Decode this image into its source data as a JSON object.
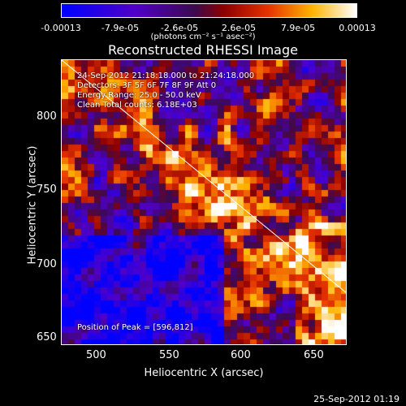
{
  "colorbar": {
    "ticks": [
      "-0.00013",
      "-7.9e-05",
      "-2.6e-05",
      "2.6e-05",
      "7.9e-05",
      "0.00013"
    ],
    "units": "(photons cm⁻² s⁻¹ asec⁻²)",
    "range": [
      -0.00013,
      0.00013
    ]
  },
  "chart_data": {
    "type": "heatmap",
    "title": "Reconstructed RHESSI Image",
    "xlabel": "Heliocentric X (arcsec)",
    "ylabel": "Heliocentric Y (arcsec)",
    "xlim": [
      478,
      670
    ],
    "ylim": [
      646,
      838
    ],
    "xticks": [
      "500",
      "550",
      "600",
      "650"
    ],
    "yticks": [
      "650",
      "700",
      "750",
      "800"
    ],
    "info_lines": [
      "24-Sep-2012 21:18:18.000 to 21:24:18.000",
      "Detectors: 3F 5F 6F 7F 8F 9F  Att 0",
      "Energy Range: 25.0 - 50.0 keV",
      "Clean   Total counts: 6.18E+03"
    ],
    "peak_label": "Position of Peak = [596,812]",
    "peak": [
      596,
      812
    ],
    "limb_line": [
      [
        478,
        838
      ],
      [
        670,
        681
      ]
    ],
    "colormap": "blue-white-red (negative blue, positive red-yellow-white)"
  },
  "footer": {
    "timestamp": "25-Sep-2012 01:19"
  }
}
